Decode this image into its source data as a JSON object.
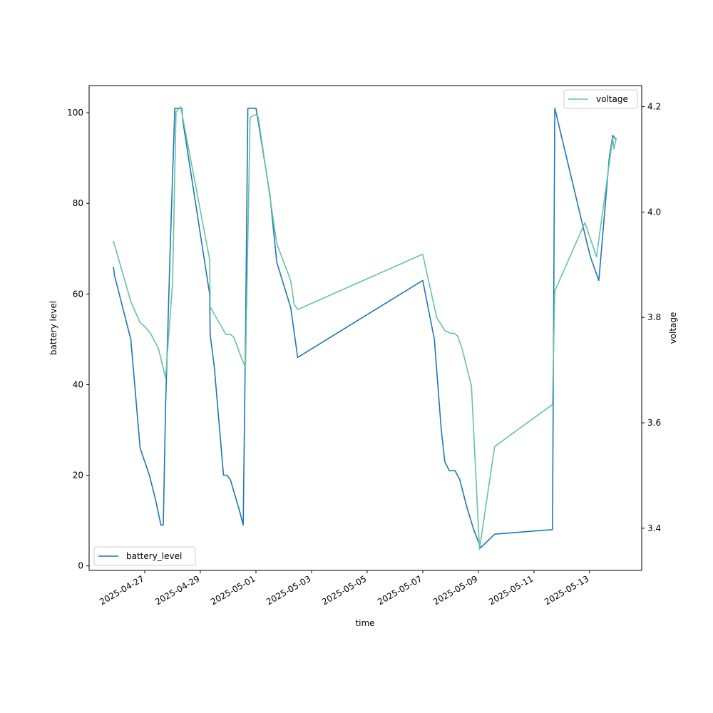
{
  "chart_data": {
    "type": "line",
    "title": "",
    "xlabel": "time",
    "ylabel_left": "battery level",
    "ylabel_right": "voltage",
    "x_ticks": [
      "2025-04-27",
      "2025-04-29",
      "2025-05-01",
      "2025-05-03",
      "2025-05-05",
      "2025-05-07",
      "2025-05-09",
      "2025-05-11",
      "2025-05-13"
    ],
    "x_range": [
      "2025-04-25T00:00",
      "2025-05-14T21:00"
    ],
    "y_left_ticks": [
      "0",
      "20",
      "40",
      "60",
      "80",
      "100"
    ],
    "y_left_range": [
      -1,
      106
    ],
    "y_right_ticks": [
      "3.4",
      "3.6",
      "3.8",
      "4.0",
      "4.2"
    ],
    "y_right_range": [
      3.32,
      4.24
    ],
    "grid": false,
    "series": [
      {
        "name": "battery_level",
        "axis": "left",
        "color": "#1f77b4",
        "legend_position": "lower-left",
        "points": [
          [
            "2025-04-25T21:00",
            66
          ],
          [
            "2025-04-25T22:00",
            64
          ],
          [
            "2025-04-26T12:00",
            50
          ],
          [
            "2025-04-26T20:00",
            26
          ],
          [
            "2025-04-27T04:00",
            20
          ],
          [
            "2025-04-27T09:00",
            15
          ],
          [
            "2025-04-27T14:00",
            9
          ],
          [
            "2025-04-27T16:00",
            9
          ],
          [
            "2025-04-27T18:00",
            35
          ],
          [
            "2025-04-27T22:00",
            70
          ],
          [
            "2025-04-28T02:00",
            101
          ],
          [
            "2025-04-28T08:00",
            101
          ],
          [
            "2025-04-28T09:00",
            98
          ],
          [
            "2025-04-29T08:00",
            60
          ],
          [
            "2025-04-29T08:30",
            51
          ],
          [
            "2025-04-29T12:00",
            44
          ],
          [
            "2025-04-29T17:00",
            29
          ],
          [
            "2025-04-29T20:00",
            20
          ],
          [
            "2025-04-29T23:00",
            20
          ],
          [
            "2025-04-30T02:00",
            19
          ],
          [
            "2025-04-30T10:00",
            12
          ],
          [
            "2025-04-30T13:00",
            9
          ],
          [
            "2025-04-30T15:00",
            50
          ],
          [
            "2025-04-30T17:00",
            101
          ],
          [
            "2025-05-01T00:00",
            101
          ],
          [
            "2025-05-01T02:00",
            98
          ],
          [
            "2025-05-01T12:00",
            82
          ],
          [
            "2025-05-01T18:00",
            67
          ],
          [
            "2025-05-02T06:00",
            57
          ],
          [
            "2025-05-02T12:00",
            46
          ],
          [
            "2025-05-07T00:00",
            63
          ],
          [
            "2025-05-07T10:00",
            50
          ],
          [
            "2025-05-07T16:00",
            30
          ],
          [
            "2025-05-07T19:00",
            23
          ],
          [
            "2025-05-07T23:00",
            21
          ],
          [
            "2025-05-08T04:00",
            21
          ],
          [
            "2025-05-08T08:00",
            19
          ],
          [
            "2025-05-08T14:00",
            13
          ],
          [
            "2025-05-08T20:00",
            8
          ],
          [
            "2025-05-09T02:00",
            4
          ],
          [
            "2025-05-09T14:00",
            7
          ],
          [
            "2025-05-11T16:00",
            8
          ],
          [
            "2025-05-11T18:00",
            101
          ],
          [
            "2025-05-12T22:00",
            71
          ],
          [
            "2025-05-13T01:00",
            68
          ],
          [
            "2025-05-13T08:00",
            63
          ],
          [
            "2025-05-13T17:00",
            90
          ],
          [
            "2025-05-13T20:00",
            95
          ],
          [
            "2025-05-13T23:00",
            94
          ]
        ]
      },
      {
        "name": "voltage",
        "axis": "right",
        "color": "#66c2a5",
        "legend_position": "upper-right",
        "points": [
          [
            "2025-04-25T21:00",
            3.945
          ],
          [
            "2025-04-26T12:00",
            3.83
          ],
          [
            "2025-04-26T20:00",
            3.79
          ],
          [
            "2025-04-27T00:00",
            3.783
          ],
          [
            "2025-04-27T05:00",
            3.77
          ],
          [
            "2025-04-27T12:00",
            3.74
          ],
          [
            "2025-04-27T18:00",
            3.685
          ],
          [
            "2025-04-28T00:00",
            3.865
          ],
          [
            "2025-04-28T03:00",
            4.19
          ],
          [
            "2025-04-28T07:00",
            4.2
          ],
          [
            "2025-04-29T08:00",
            3.91
          ],
          [
            "2025-04-29T08:30",
            3.82
          ],
          [
            "2025-04-29T22:00",
            3.768
          ],
          [
            "2025-04-30T02:00",
            3.768
          ],
          [
            "2025-04-30T05:00",
            3.762
          ],
          [
            "2025-04-30T12:00",
            3.72
          ],
          [
            "2025-04-30T15:00",
            3.705
          ],
          [
            "2025-04-30T19:00",
            4.18
          ],
          [
            "2025-05-01T00:00",
            4.185
          ],
          [
            "2025-05-01T02:00",
            4.18
          ],
          [
            "2025-05-01T18:00",
            3.94
          ],
          [
            "2025-05-02T06:00",
            3.87
          ],
          [
            "2025-05-02T09:00",
            3.825
          ],
          [
            "2025-05-02T12:00",
            3.815
          ],
          [
            "2025-05-07T00:00",
            3.92
          ],
          [
            "2025-05-07T12:00",
            3.8
          ],
          [
            "2025-05-07T19:00",
            3.775
          ],
          [
            "2025-05-08T00:00",
            3.77
          ],
          [
            "2025-05-08T03:00",
            3.77
          ],
          [
            "2025-05-08T06:00",
            3.765
          ],
          [
            "2025-05-08T10:00",
            3.74
          ],
          [
            "2025-05-08T18:00",
            3.67
          ],
          [
            "2025-05-09T01:00",
            3.36
          ],
          [
            "2025-05-09T14:00",
            3.555
          ],
          [
            "2025-05-11T16:00",
            3.635
          ],
          [
            "2025-05-11T18:00",
            3.85
          ],
          [
            "2025-05-12T20:00",
            3.98
          ],
          [
            "2025-05-13T06:00",
            3.915
          ],
          [
            "2025-05-13T20:00",
            4.14
          ],
          [
            "2025-05-13T21:00",
            4.12
          ],
          [
            "2025-05-13T23:00",
            4.14
          ]
        ]
      }
    ]
  }
}
